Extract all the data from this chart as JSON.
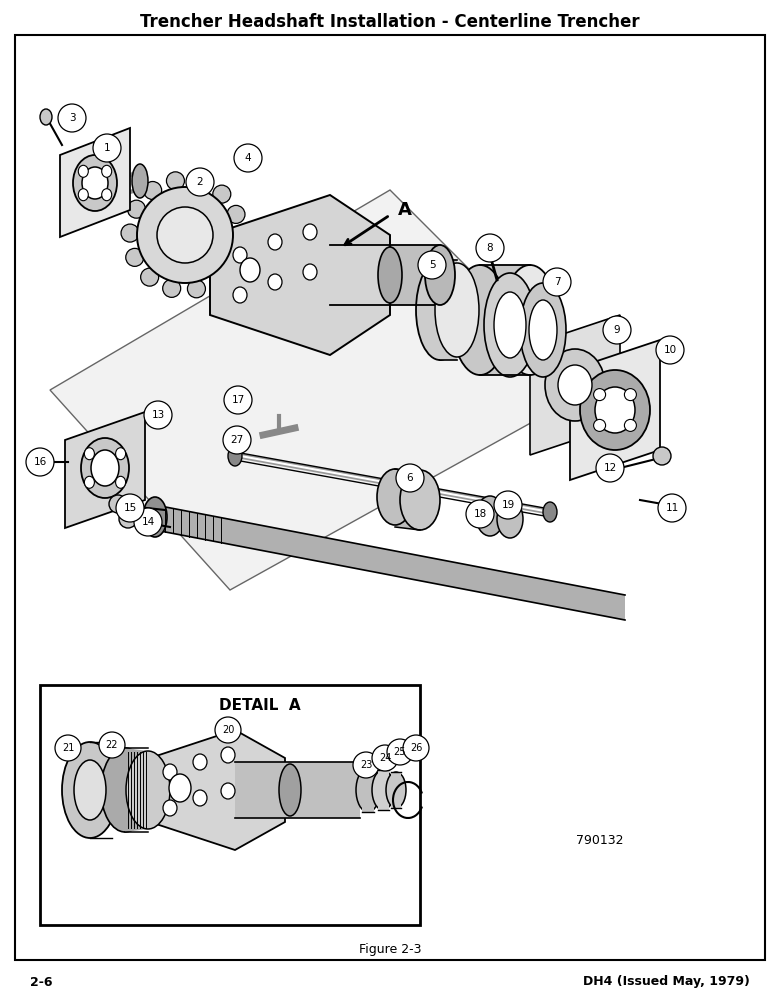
{
  "title": "Trencher Headshaft Installation - Centerline Trencher",
  "title_fontsize": 12,
  "figure_caption": "Figure 2-3",
  "page_left": "2-6",
  "page_right": "DH4 (Issued May, 1979)",
  "part_number": "790132",
  "detail_label": "DETAIL  A",
  "bg_color": "#ffffff",
  "border_color": "#000000",
  "line_color": "#000000",
  "text_color": "#000000",
  "gray_fill": "#c8c8c8",
  "light_gray": "#e8e8e8",
  "mid_gray": "#aaaaaa"
}
